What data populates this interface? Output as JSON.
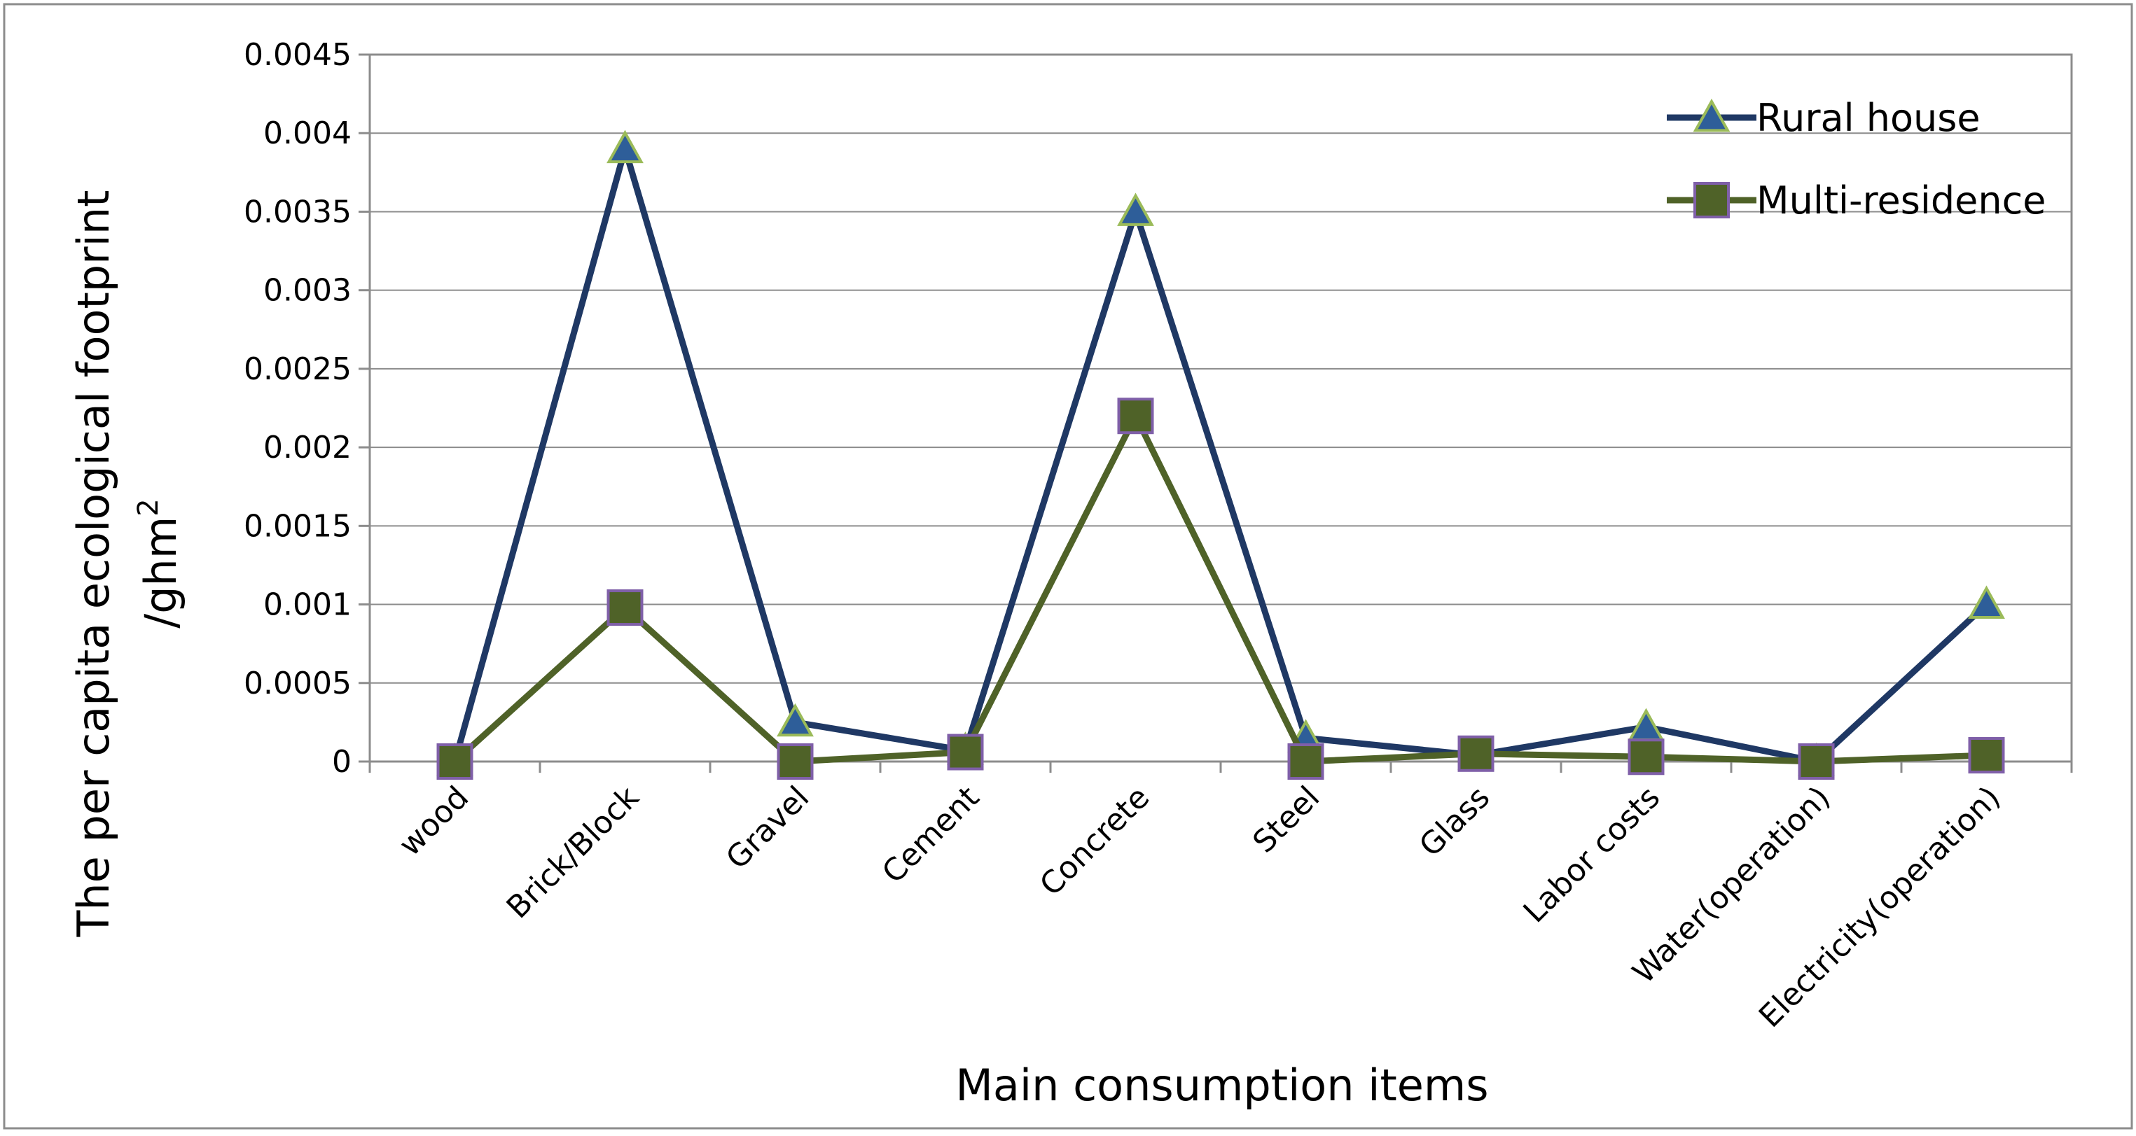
{
  "chart_data": {
    "type": "line",
    "title": "",
    "xlabel": "Main consumption items",
    "ylabel": "The per capita ecological footprint",
    "ylabel_line2_prefix": "/ghm",
    "ylabel_line2_sup": "2",
    "categories": [
      "wood",
      "Brick/Block",
      "Gravel",
      "Cement",
      "Concrete",
      "Steel",
      "Glass",
      "Labor costs",
      "Water(operation)",
      "Electricity(operation)"
    ],
    "ylim": [
      0,
      0.0045
    ],
    "yticks": [
      "0",
      "0.0005",
      "0.001",
      "0.0015",
      "0.002",
      "0.0025",
      "0.003",
      "0.0035",
      "0.004",
      "0.0045"
    ],
    "grid": "horizontal",
    "legend_position": "top-right",
    "series": [
      {
        "name": "Rural house",
        "marker": "triangle",
        "line_color": "#1f3864",
        "marker_fill": "#2e5e99",
        "marker_stroke": "#9bbb59",
        "values": [
          0.0,
          0.0039,
          0.00025,
          7e-05,
          0.0035,
          0.00015,
          4e-05,
          0.00022,
          0.0,
          0.001
        ]
      },
      {
        "name": "Multi-residence",
        "marker": "square",
        "line_color": "#4f6228",
        "marker_fill": "#4f6228",
        "marker_stroke": "#7f5fa8",
        "values": [
          0.0,
          0.00098,
          0.0,
          6e-05,
          0.0022,
          0.0,
          5e-05,
          3e-05,
          0.0,
          4e-05
        ]
      }
    ]
  }
}
